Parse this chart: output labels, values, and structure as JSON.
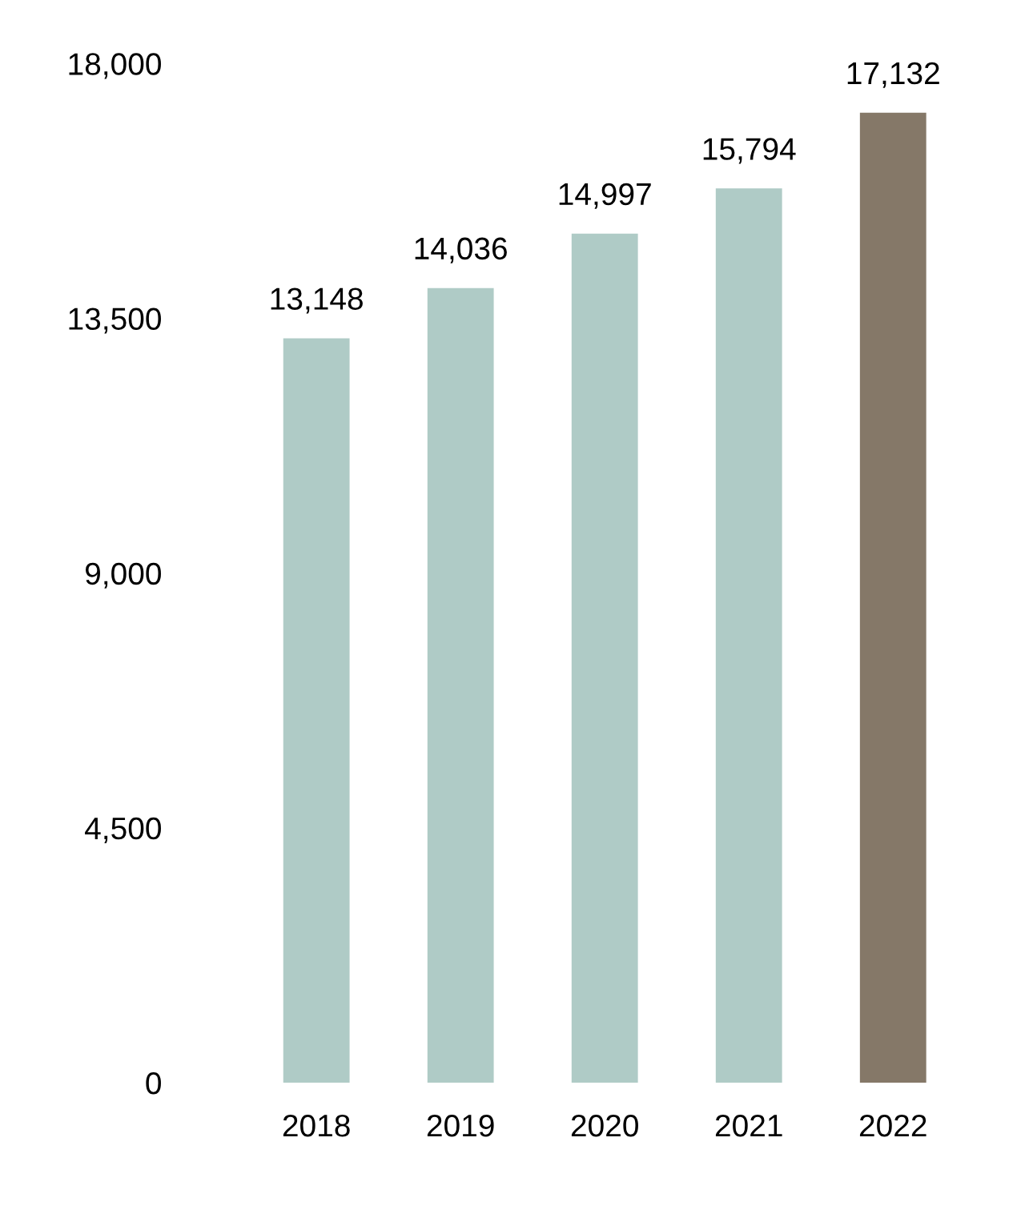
{
  "chart_data": {
    "type": "bar",
    "categories": [
      "2018",
      "2019",
      "2020",
      "2021",
      "2022"
    ],
    "values": [
      13148,
      14036,
      14997,
      15794,
      17132
    ],
    "colors": [
      "#afcbc6",
      "#afcbc6",
      "#afcbc6",
      "#afcbc6",
      "#857868"
    ],
    "value_labels": [
      "13,148",
      "14,036",
      "14,997",
      "15,794",
      "17,132"
    ],
    "ylim": [
      0,
      18000
    ],
    "yticks": [
      {
        "value": 0,
        "label": "0"
      },
      {
        "value": 4500,
        "label": "4,500"
      },
      {
        "value": 9000,
        "label": "9,000"
      },
      {
        "value": 13500,
        "label": "13,500"
      },
      {
        "value": 18000,
        "label": "18,000"
      }
    ],
    "grid": false,
    "legend": false
  }
}
